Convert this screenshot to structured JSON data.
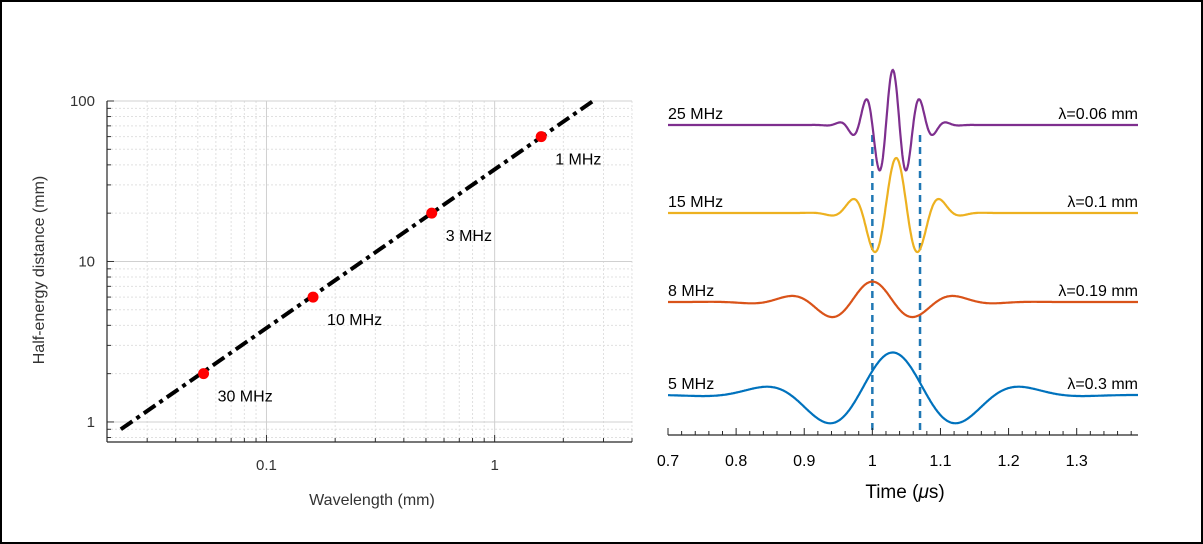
{
  "chart_data": [
    {
      "type": "line",
      "scale": {
        "x": "log",
        "y": "log"
      },
      "xlabel": "Wavelength (mm)",
      "ylabel": "Half-energy distance (mm)",
      "xlim": [
        0.02,
        4
      ],
      "ylim": [
        0.75,
        100
      ],
      "x_tick_labels": [
        {
          "value": 0.1,
          "label": "0.1"
        },
        {
          "value": 1,
          "label": "1"
        }
      ],
      "y_tick_labels": [
        {
          "value": 1,
          "label": "1"
        },
        {
          "value": 10,
          "label": "10"
        },
        {
          "value": 100,
          "label": "100"
        }
      ],
      "grid": true,
      "line": {
        "style": "dash-dot",
        "color": "#000000",
        "x": [
          0.023,
          2.7
        ],
        "y": [
          0.9,
          100
        ]
      },
      "points": [
        {
          "x": 0.053,
          "y": 2,
          "label": "30 MHz"
        },
        {
          "x": 0.16,
          "y": 6,
          "label": "10 MHz"
        },
        {
          "x": 0.53,
          "y": 20,
          "label": "3 MHz"
        },
        {
          "x": 1.6,
          "y": 60,
          "label": "1 MHz"
        }
      ],
      "point_color": "#ff0000"
    },
    {
      "type": "line",
      "xlabel_prefix": "Time (",
      "xlabel_symbol": "μ",
      "xlabel_suffix": "s)",
      "xlim": [
        0.7,
        1.39
      ],
      "x_tick_labels": [
        {
          "value": 0.7,
          "label": "0.7"
        },
        {
          "value": 0.8,
          "label": "0.8"
        },
        {
          "value": 0.9,
          "label": "0.9"
        },
        {
          "value": 1.0,
          "label": "1"
        },
        {
          "value": 1.1,
          "label": "1.1"
        },
        {
          "value": 1.2,
          "label": "1.2"
        },
        {
          "value": 1.3,
          "label": "1.3"
        }
      ],
      "vlines": [
        1.0,
        1.07
      ],
      "vline_color": "#1f77b4",
      "series": [
        {
          "name": "25 MHz",
          "wavelength_label": "λ=0.06 mm",
          "color": "#7e2f8e",
          "freq_mhz": 25,
          "center": 1.03,
          "width": 0.045,
          "amp": 1.0
        },
        {
          "name": "15 MHz",
          "wavelength_label": "λ=0.1 mm",
          "color": "#edb120",
          "freq_mhz": 15,
          "center": 1.035,
          "width": 0.055,
          "amp": 1.0
        },
        {
          "name": "8 MHz",
          "wavelength_label": "λ=0.19 mm",
          "color": "#d95319",
          "freq_mhz": 8,
          "center": 1.0,
          "width": 0.11,
          "amp": 0.6
        },
        {
          "name": "5 MHz",
          "wavelength_label": "λ=0.3 mm",
          "color": "#0072bd",
          "freq_mhz": 5,
          "center": 1.03,
          "width": 0.15,
          "amp": 0.85
        }
      ]
    }
  ]
}
